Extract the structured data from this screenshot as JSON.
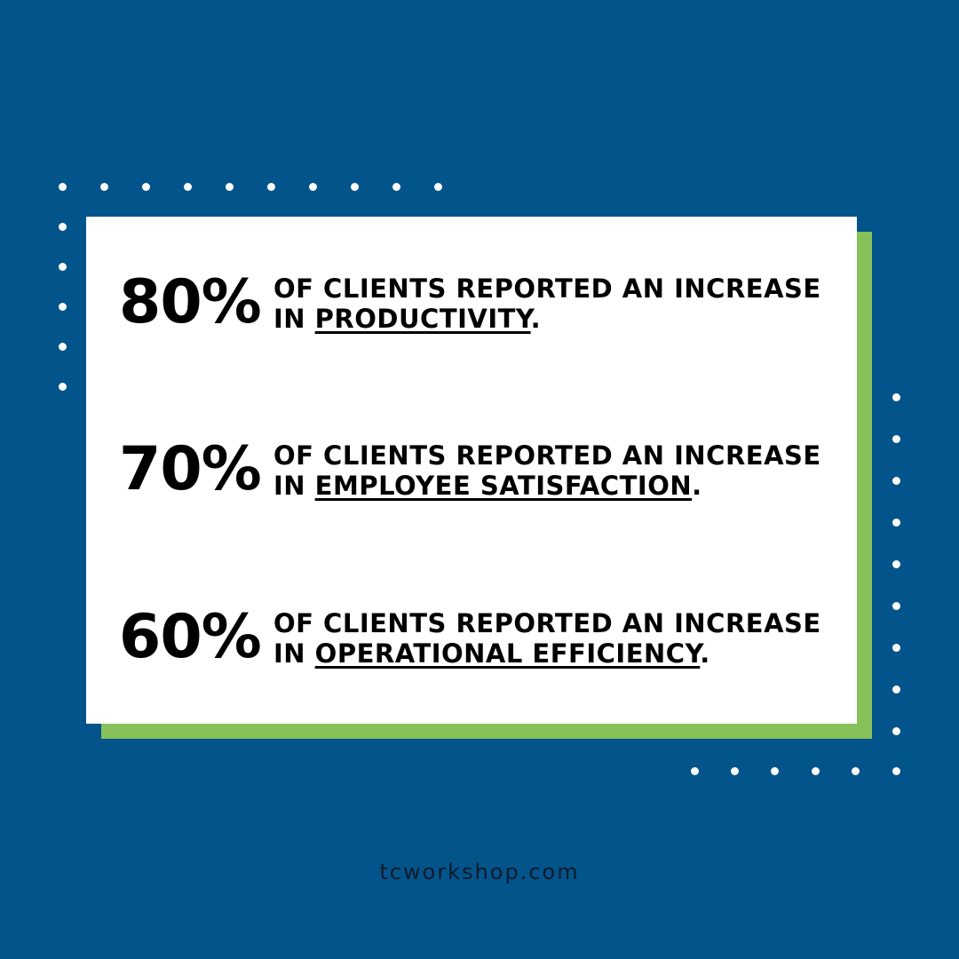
{
  "colors": {
    "background": "#03548a",
    "card": "#ffffff",
    "accent_shadow": "#86c15a",
    "text": "#000000",
    "dots": "#ffffff"
  },
  "stats": [
    {
      "value": "80%",
      "line1": "OF CLIENTS REPORTED AN INCREASE",
      "prefix": "IN ",
      "highlight": "PRODUCTIVITY",
      "suffix": "."
    },
    {
      "value": "70%",
      "line1": "OF CLIENTS REPORTED AN INCREASE",
      "prefix": "IN ",
      "highlight": "EMPLOYEE SATISFACTION",
      "suffix": "."
    },
    {
      "value": "60%",
      "line1": "OF CLIENTS REPORTED AN INCREASE",
      "prefix": "IN ",
      "highlight": "OPERATIONAL EFFICIENCY",
      "suffix": "."
    }
  ],
  "footer": {
    "website": "tcworkshop.com"
  }
}
